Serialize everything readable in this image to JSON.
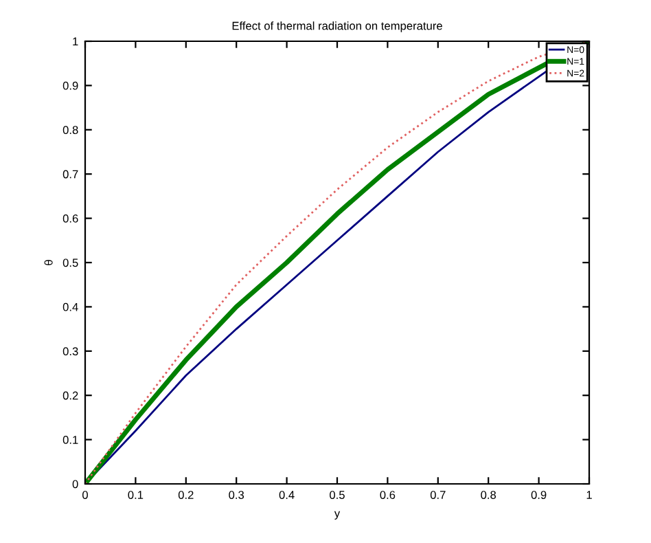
{
  "chart_data": {
    "type": "line",
    "title": "Effect of thermal radiation on temperature",
    "xlabel": "y",
    "ylabel": "θ",
    "x": [
      0,
      0.1,
      0.2,
      0.3,
      0.4,
      0.5,
      0.6,
      0.7,
      0.8,
      0.9,
      1
    ],
    "series": [
      {
        "name": "N=0",
        "color": "#000080",
        "line_style": "solid",
        "values": [
          0,
          0.12,
          0.245,
          0.35,
          0.45,
          0.55,
          0.65,
          0.75,
          0.84,
          0.92,
          1
        ]
      },
      {
        "name": "N=1",
        "color": "#008000",
        "line_style": "solid",
        "values": [
          0,
          0.145,
          0.28,
          0.4,
          0.5,
          0.61,
          0.71,
          0.795,
          0.88,
          0.94,
          1
        ]
      },
      {
        "name": "N=2",
        "color": "#e06060",
        "line_style": "dotted",
        "values": [
          0,
          0.16,
          0.31,
          0.45,
          0.56,
          0.665,
          0.76,
          0.84,
          0.91,
          0.965,
          1
        ]
      }
    ],
    "xlim": [
      0,
      1
    ],
    "ylim": [
      0,
      1
    ],
    "xticks": [
      0,
      0.1,
      0.2,
      0.3,
      0.4,
      0.5,
      0.6,
      0.7,
      0.8,
      0.9,
      1
    ],
    "yticks": [
      0,
      0.1,
      0.2,
      0.3,
      0.4,
      0.5,
      0.6,
      0.7,
      0.8,
      0.9,
      1
    ],
    "grid": false,
    "legend": "top right",
    "marker": "none"
  }
}
